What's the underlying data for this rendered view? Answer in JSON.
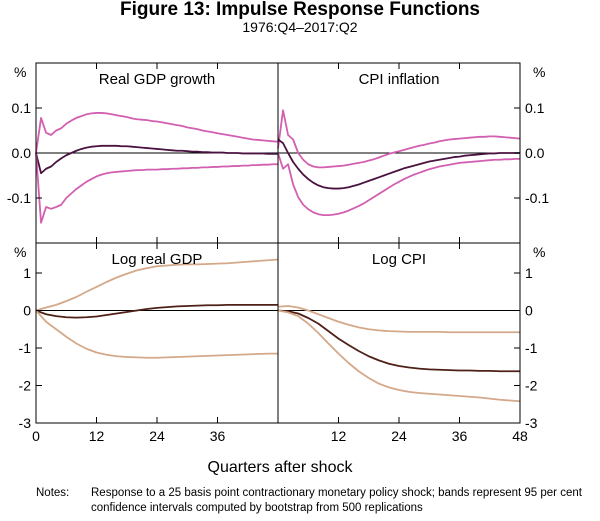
{
  "figure": {
    "title": "Figure 13: Impulse Response Functions",
    "subtitle": "1976:Q4–2017:Q2"
  },
  "notes": {
    "label": "Notes:",
    "text": "Response to a 25 basis point contractionary monetary policy shock; bands represent 95 per cent confidence intervals computed by bootstrap from 500 replications"
  },
  "colors": {
    "top_band": "#d25fb0",
    "top_central": "#4a1240",
    "bottom_band": "#d4a88a",
    "bottom_central": "#4e2018",
    "axis": "#000000"
  },
  "chart_data": [
    {
      "type": "line",
      "title": "Real GDP growth",
      "unit_label": "%",
      "xlabel": "Quarters after shock",
      "xlim": [
        0,
        48
      ],
      "ylim": [
        -0.2,
        0.2
      ],
      "yticks": [
        0.1,
        0.0,
        -0.1
      ],
      "ytick_labels": [
        "0.1",
        "0.0",
        "-0.1"
      ],
      "xticks": [
        0,
        12,
        24,
        36
      ],
      "xtick_labels": [
        "0",
        "12",
        "24",
        "36"
      ],
      "x": [
        0,
        1,
        2,
        3,
        4,
        5,
        6,
        7,
        8,
        9,
        10,
        11,
        12,
        13,
        14,
        15,
        16,
        17,
        18,
        19,
        20,
        21,
        22,
        23,
        24,
        25,
        26,
        27,
        28,
        29,
        30,
        31,
        32,
        33,
        34,
        35,
        36,
        37,
        38,
        39,
        40,
        41,
        42,
        43,
        44,
        45,
        46,
        47,
        48
      ],
      "series": [
        {
          "name": "upper band",
          "role": "band",
          "values": [
            0.0,
            0.078,
            0.045,
            0.04,
            0.05,
            0.055,
            0.065,
            0.072,
            0.078,
            0.082,
            0.086,
            0.088,
            0.089,
            0.089,
            0.088,
            0.086,
            0.084,
            0.082,
            0.08,
            0.077,
            0.075,
            0.074,
            0.073,
            0.071,
            0.07,
            0.068,
            0.066,
            0.064,
            0.062,
            0.06,
            0.057,
            0.055,
            0.053,
            0.05,
            0.048,
            0.046,
            0.044,
            0.042,
            0.04,
            0.038,
            0.036,
            0.034,
            0.032,
            0.03,
            0.029,
            0.028,
            0.027,
            0.026,
            0.025
          ]
        },
        {
          "name": "response",
          "role": "central",
          "values": [
            0.0,
            -0.045,
            -0.035,
            -0.03,
            -0.02,
            -0.012,
            -0.005,
            0.0,
            0.005,
            0.009,
            0.012,
            0.014,
            0.015,
            0.016,
            0.016,
            0.016,
            0.016,
            0.015,
            0.015,
            0.014,
            0.013,
            0.012,
            0.011,
            0.01,
            0.009,
            0.008,
            0.007,
            0.006,
            0.005,
            0.005,
            0.004,
            0.003,
            0.003,
            0.002,
            0.002,
            0.001,
            0.001,
            0.001,
            0.0,
            0.0,
            0.0,
            -0.001,
            -0.001,
            -0.001,
            -0.001,
            -0.001,
            -0.002,
            -0.002,
            -0.002
          ]
        },
        {
          "name": "lower band",
          "role": "band",
          "values": [
            0.0,
            -0.155,
            -0.12,
            -0.124,
            -0.12,
            -0.115,
            -0.1,
            -0.09,
            -0.08,
            -0.072,
            -0.064,
            -0.058,
            -0.052,
            -0.048,
            -0.045,
            -0.043,
            -0.042,
            -0.041,
            -0.04,
            -0.039,
            -0.038,
            -0.038,
            -0.037,
            -0.037,
            -0.037,
            -0.036,
            -0.036,
            -0.035,
            -0.035,
            -0.034,
            -0.034,
            -0.033,
            -0.033,
            -0.032,
            -0.032,
            -0.031,
            -0.031,
            -0.03,
            -0.03,
            -0.029,
            -0.029,
            -0.028,
            -0.028,
            -0.027,
            -0.027,
            -0.026,
            -0.026,
            -0.025,
            -0.025
          ]
        }
      ]
    },
    {
      "type": "line",
      "title": "CPI inflation",
      "unit_label": "%",
      "xlim": [
        0,
        48
      ],
      "ylim": [
        -0.2,
        0.2
      ],
      "yticks": [
        0.1,
        0.0,
        -0.1
      ],
      "ytick_labels": [
        "0.1",
        "0.0",
        "-0.1"
      ],
      "xticks": [
        12,
        24,
        36
      ],
      "xtick_labels": [
        "12",
        "24",
        "36"
      ],
      "x": [
        0,
        1,
        2,
        3,
        4,
        5,
        6,
        7,
        8,
        9,
        10,
        11,
        12,
        13,
        14,
        15,
        16,
        17,
        18,
        19,
        20,
        21,
        22,
        23,
        24,
        25,
        26,
        27,
        28,
        29,
        30,
        31,
        32,
        33,
        34,
        35,
        36,
        37,
        38,
        39,
        40,
        41,
        42,
        43,
        44,
        45,
        46,
        47,
        48
      ],
      "series": [
        {
          "name": "upper band",
          "role": "band",
          "values": [
            0.01,
            0.095,
            0.04,
            0.03,
            0.0,
            -0.015,
            -0.025,
            -0.03,
            -0.032,
            -0.032,
            -0.031,
            -0.03,
            -0.029,
            -0.028,
            -0.026,
            -0.024,
            -0.022,
            -0.02,
            -0.017,
            -0.014,
            -0.01,
            -0.006,
            -0.002,
            0.001,
            0.004,
            0.007,
            0.01,
            0.013,
            0.016,
            0.018,
            0.021,
            0.023,
            0.026,
            0.028,
            0.03,
            0.031,
            0.032,
            0.033,
            0.034,
            0.035,
            0.036,
            0.036,
            0.037,
            0.037,
            0.036,
            0.035,
            0.034,
            0.033,
            0.032
          ]
        },
        {
          "name": "response",
          "role": "central",
          "values": [
            0.03,
            0.022,
            0.0,
            -0.02,
            -0.035,
            -0.048,
            -0.058,
            -0.066,
            -0.072,
            -0.076,
            -0.078,
            -0.079,
            -0.079,
            -0.078,
            -0.076,
            -0.073,
            -0.07,
            -0.066,
            -0.062,
            -0.058,
            -0.054,
            -0.05,
            -0.046,
            -0.042,
            -0.038,
            -0.034,
            -0.031,
            -0.028,
            -0.025,
            -0.022,
            -0.019,
            -0.017,
            -0.015,
            -0.013,
            -0.011,
            -0.009,
            -0.008,
            -0.006,
            -0.005,
            -0.004,
            -0.003,
            -0.002,
            -0.001,
            -0.001,
            0.0,
            0.0,
            0.0,
            0.0,
            0.0
          ]
        },
        {
          "name": "lower band",
          "role": "band",
          "values": [
            0.0,
            -0.035,
            -0.025,
            -0.07,
            -0.098,
            -0.115,
            -0.125,
            -0.132,
            -0.136,
            -0.138,
            -0.138,
            -0.137,
            -0.135,
            -0.132,
            -0.128,
            -0.123,
            -0.118,
            -0.112,
            -0.105,
            -0.098,
            -0.091,
            -0.084,
            -0.077,
            -0.07,
            -0.064,
            -0.058,
            -0.053,
            -0.048,
            -0.044,
            -0.04,
            -0.036,
            -0.033,
            -0.03,
            -0.028,
            -0.026,
            -0.024,
            -0.022,
            -0.021,
            -0.02,
            -0.019,
            -0.018,
            -0.017,
            -0.016,
            -0.015,
            -0.015,
            -0.014,
            -0.014,
            -0.013,
            -0.013
          ]
        }
      ]
    },
    {
      "type": "line",
      "title": "Log real GDP",
      "unit_label": "%",
      "xlim": [
        0,
        48
      ],
      "ylim": [
        -3,
        1.8
      ],
      "yticks": [
        1,
        0,
        -1,
        -2,
        -3
      ],
      "ytick_labels": [
        "1",
        "0",
        "-1",
        "-2",
        "-3"
      ],
      "xticks": [
        0,
        12,
        24,
        36
      ],
      "xtick_labels": [
        "0",
        "12",
        "24",
        "36"
      ],
      "x": [
        0,
        2,
        4,
        6,
        8,
        10,
        12,
        14,
        16,
        18,
        20,
        22,
        24,
        26,
        28,
        30,
        32,
        34,
        36,
        38,
        40,
        42,
        44,
        46,
        48
      ],
      "series": [
        {
          "name": "upper band",
          "role": "band",
          "values": [
            0.0,
            0.08,
            0.15,
            0.25,
            0.36,
            0.5,
            0.63,
            0.76,
            0.88,
            0.98,
            1.07,
            1.13,
            1.18,
            1.2,
            1.22,
            1.23,
            1.23,
            1.24,
            1.25,
            1.26,
            1.28,
            1.3,
            1.32,
            1.34,
            1.36
          ]
        },
        {
          "name": "response",
          "role": "central",
          "values": [
            0.0,
            -0.1,
            -0.15,
            -0.18,
            -0.19,
            -0.18,
            -0.16,
            -0.12,
            -0.08,
            -0.04,
            0.0,
            0.04,
            0.07,
            0.09,
            0.11,
            0.12,
            0.13,
            0.14,
            0.14,
            0.15,
            0.15,
            0.15,
            0.15,
            0.15,
            0.15
          ]
        },
        {
          "name": "lower band",
          "role": "band",
          "values": [
            0.0,
            -0.3,
            -0.5,
            -0.7,
            -0.88,
            -1.02,
            -1.12,
            -1.18,
            -1.22,
            -1.24,
            -1.25,
            -1.26,
            -1.26,
            -1.25,
            -1.24,
            -1.23,
            -1.22,
            -1.21,
            -1.2,
            -1.19,
            -1.18,
            -1.17,
            -1.16,
            -1.15,
            -1.15
          ]
        }
      ]
    },
    {
      "type": "line",
      "title": "Log CPI",
      "unit_label": "%",
      "xlim": [
        0,
        48
      ],
      "ylim": [
        -3,
        1.8
      ],
      "yticks": [
        1,
        0,
        -1,
        -2,
        -3
      ],
      "ytick_labels": [
        "1",
        "0",
        "-1",
        "-2",
        "-3"
      ],
      "xticks": [
        12,
        24,
        36,
        48
      ],
      "xtick_labels": [
        "12",
        "24",
        "36",
        "48"
      ],
      "x": [
        0,
        2,
        4,
        6,
        8,
        10,
        12,
        14,
        16,
        18,
        20,
        22,
        24,
        26,
        28,
        30,
        32,
        34,
        36,
        38,
        40,
        42,
        44,
        46,
        48
      ],
      "series": [
        {
          "name": "upper band",
          "role": "band",
          "values": [
            0.1,
            0.12,
            0.08,
            0.0,
            -0.1,
            -0.2,
            -0.3,
            -0.38,
            -0.45,
            -0.5,
            -0.53,
            -0.55,
            -0.56,
            -0.57,
            -0.57,
            -0.57,
            -0.57,
            -0.58,
            -0.58,
            -0.58,
            -0.58,
            -0.58,
            -0.58,
            -0.58,
            -0.58
          ]
        },
        {
          "name": "response",
          "role": "central",
          "values": [
            0.0,
            -0.02,
            -0.08,
            -0.2,
            -0.35,
            -0.55,
            -0.75,
            -0.92,
            -1.08,
            -1.22,
            -1.33,
            -1.42,
            -1.48,
            -1.52,
            -1.55,
            -1.57,
            -1.58,
            -1.59,
            -1.6,
            -1.6,
            -1.61,
            -1.61,
            -1.62,
            -1.62,
            -1.62
          ]
        },
        {
          "name": "lower band",
          "role": "band",
          "values": [
            0.0,
            -0.05,
            -0.15,
            -0.35,
            -0.6,
            -0.88,
            -1.15,
            -1.4,
            -1.62,
            -1.8,
            -1.95,
            -2.05,
            -2.12,
            -2.17,
            -2.2,
            -2.22,
            -2.24,
            -2.26,
            -2.28,
            -2.3,
            -2.32,
            -2.35,
            -2.38,
            -2.4,
            -2.42
          ]
        }
      ]
    }
  ]
}
